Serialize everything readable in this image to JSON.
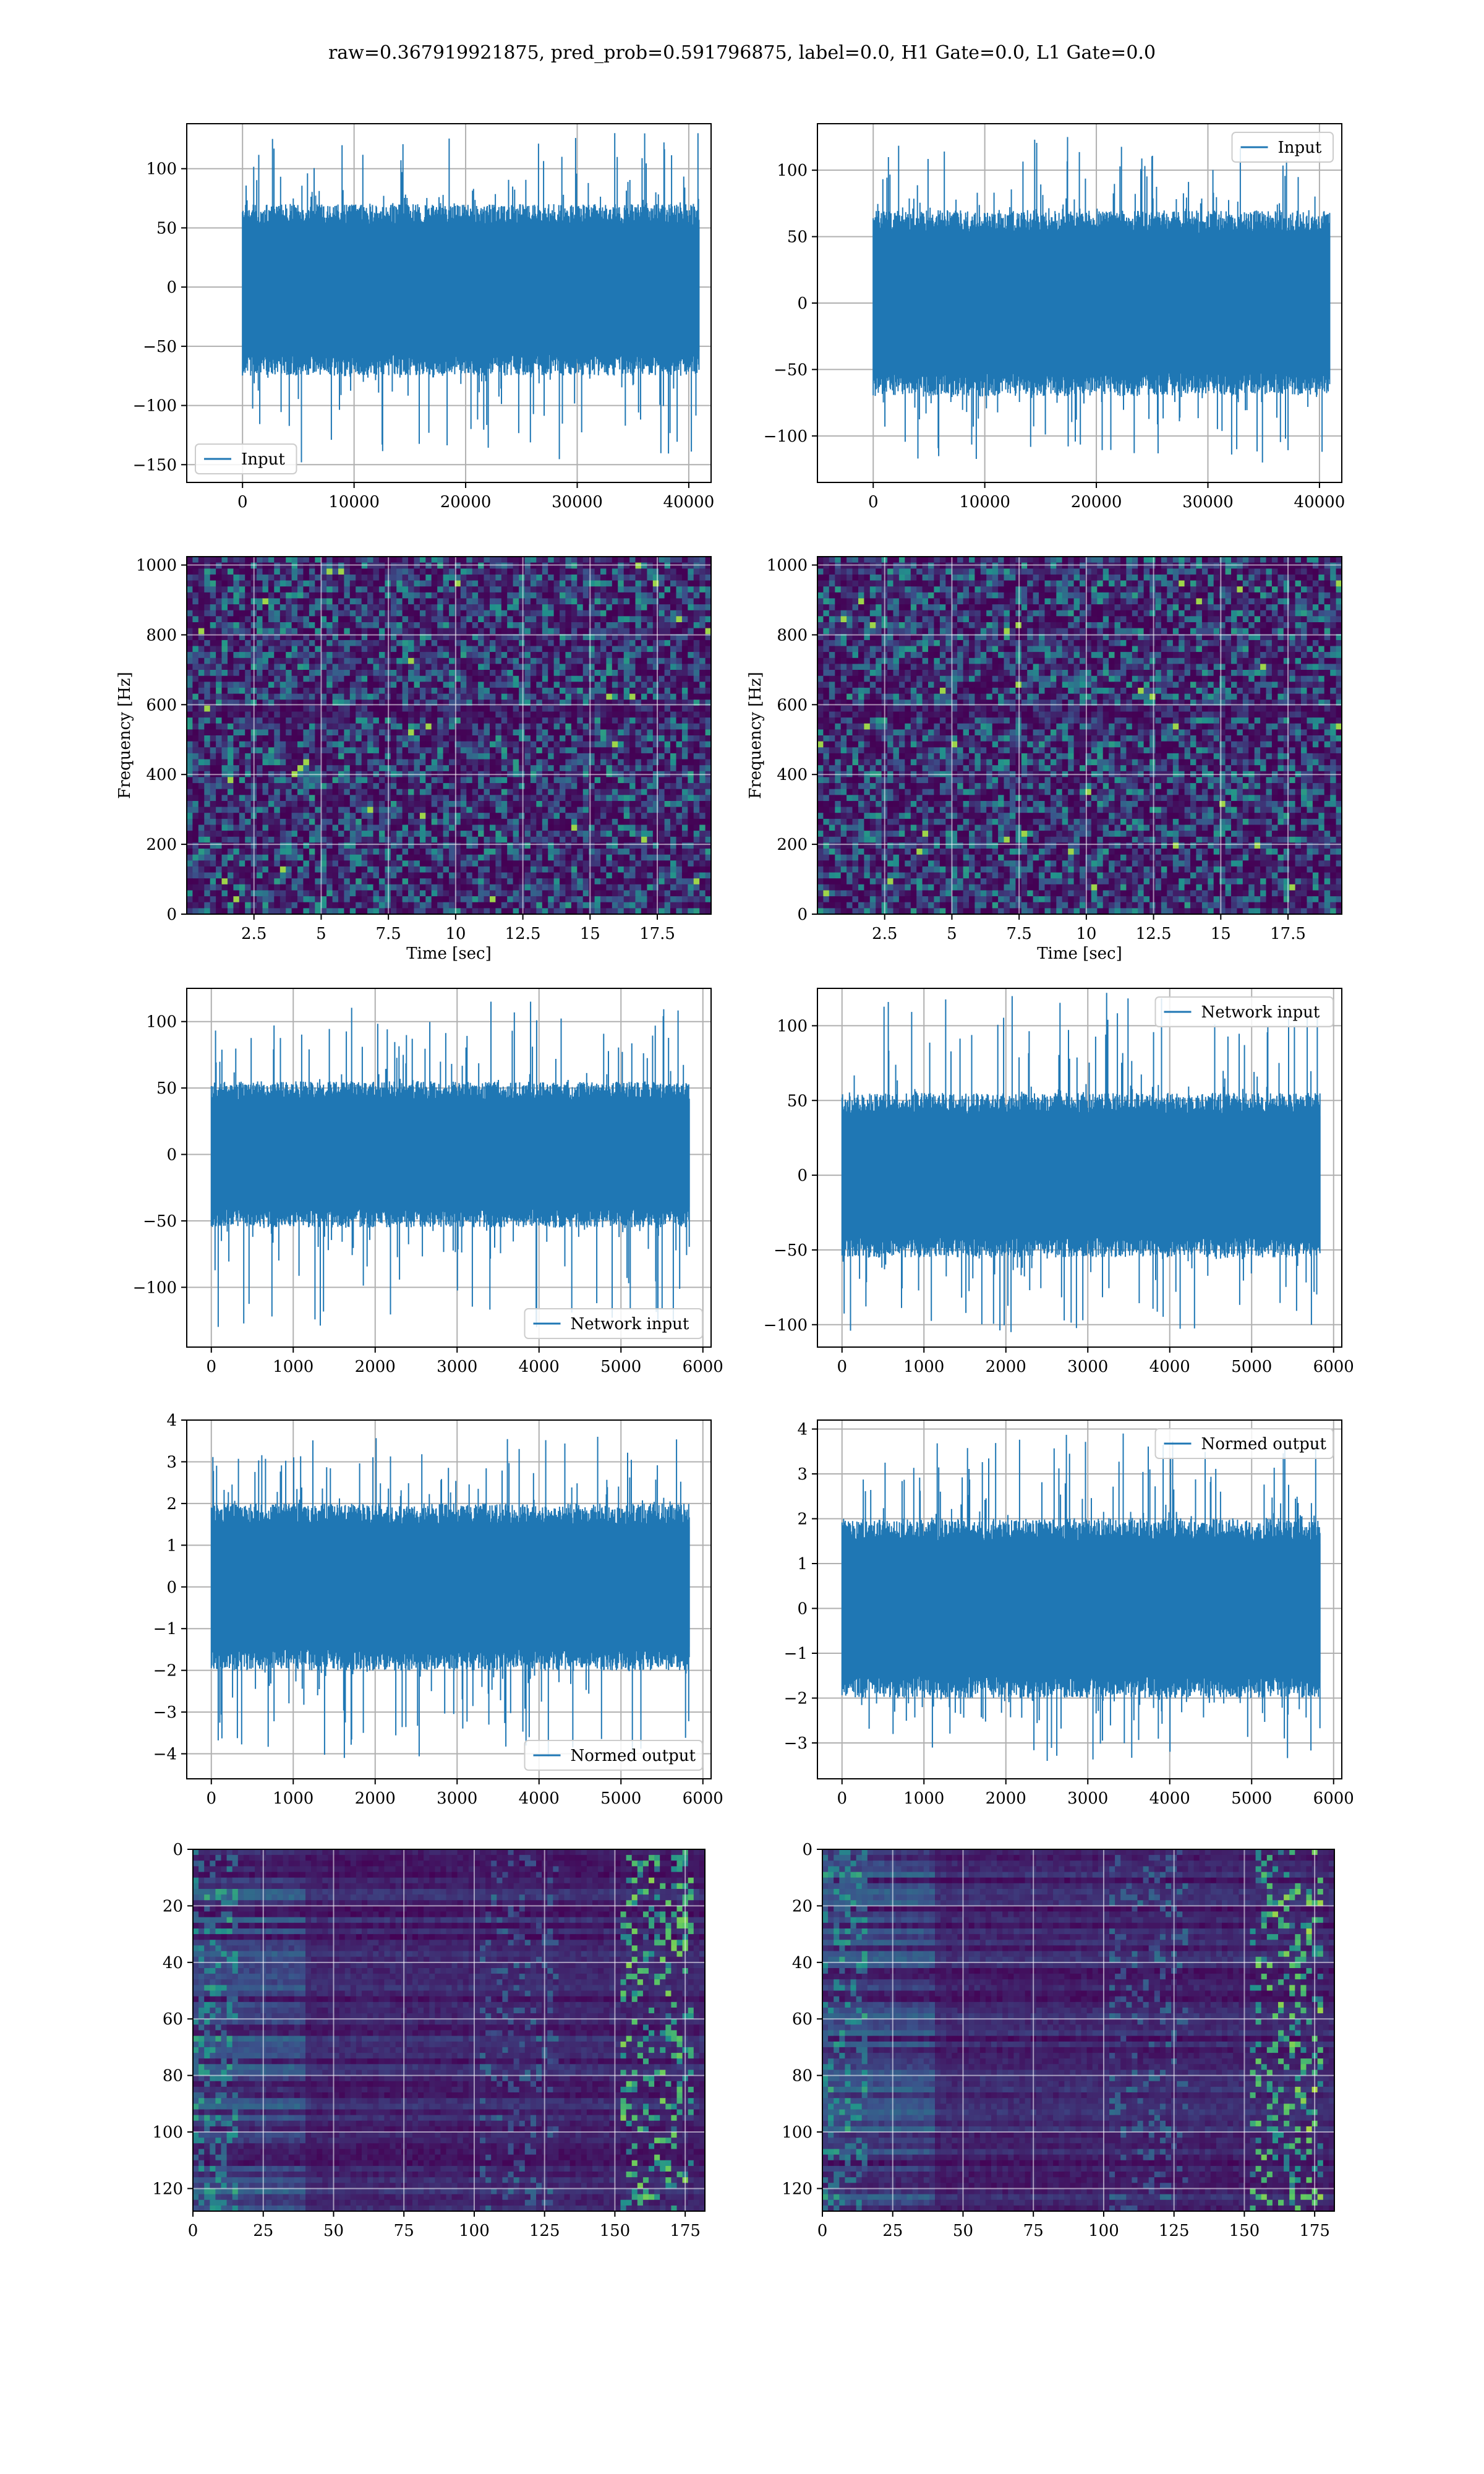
{
  "suptitle": "raw=0.367919921875, pred_prob=0.591796875, label=0.0, H1 Gate=0.0, L1 Gate=0.0",
  "colors": {
    "line": "#1f77b4",
    "grid": "#b0b0b0",
    "viridis_dark": "#440154"
  },
  "chart_data": [
    {
      "id": "h1-input",
      "type": "line",
      "legend": "Input",
      "legend_loc": "lower-left",
      "xlim": [
        -5000,
        42000
      ],
      "ylim": [
        -165,
        138
      ],
      "xticks": [
        0,
        10000,
        20000,
        30000,
        40000
      ],
      "yticks": [
        -150,
        -100,
        -50,
        0,
        50,
        100
      ],
      "n_samples": 40960,
      "noise_amplitude": 130,
      "core_range": [
        -75,
        70
      ],
      "min_spike": -148,
      "max_spike": 130
    },
    {
      "id": "l1-input",
      "type": "line",
      "legend": "Input",
      "legend_loc": "upper-right",
      "xlim": [
        -5000,
        42000
      ],
      "ylim": [
        -135,
        135
      ],
      "xticks": [
        0,
        10000,
        20000,
        30000,
        40000
      ],
      "yticks": [
        -100,
        -50,
        0,
        50,
        100
      ],
      "n_samples": 40960,
      "core_range": [
        -70,
        70
      ],
      "min_spike": -120,
      "max_spike": 125
    },
    {
      "id": "h1-spectrogram",
      "type": "heatmap",
      "colormap": "viridis",
      "xlabel": "Time [sec]",
      "ylabel": "Frequency [Hz]",
      "xlim": [
        0,
        19.5
      ],
      "ylim": [
        0,
        1024
      ],
      "xticks": [
        2.5,
        5.0,
        7.5,
        10.0,
        12.5,
        15.0,
        17.5
      ],
      "yticks": [
        0,
        200,
        400,
        600,
        800,
        1000
      ]
    },
    {
      "id": "l1-spectrogram",
      "type": "heatmap",
      "colormap": "viridis",
      "xlabel": "Time [sec]",
      "ylabel": "Frequency [Hz]",
      "xlim": [
        0,
        19.5
      ],
      "ylim": [
        0,
        1024
      ],
      "xticks": [
        2.5,
        5.0,
        7.5,
        10.0,
        12.5,
        15.0,
        17.5
      ],
      "yticks": [
        0,
        200,
        400,
        600,
        800,
        1000
      ]
    },
    {
      "id": "h1-network-input",
      "type": "line",
      "legend": "Network input",
      "legend_loc": "lower-right",
      "xlim": [
        -300,
        6100
      ],
      "ylim": [
        -145,
        125
      ],
      "xticks": [
        0,
        1000,
        2000,
        3000,
        4000,
        5000,
        6000
      ],
      "yticks": [
        -100,
        -50,
        0,
        50,
        100
      ],
      "n_samples": 5840,
      "core_range": [
        -55,
        55
      ],
      "min_spike": -130,
      "max_spike": 115
    },
    {
      "id": "l1-network-input",
      "type": "line",
      "legend": "Network input",
      "legend_loc": "upper-right",
      "xlim": [
        -300,
        6100
      ],
      "ylim": [
        -115,
        125
      ],
      "xticks": [
        0,
        1000,
        2000,
        3000,
        4000,
        5000,
        6000
      ],
      "yticks": [
        -100,
        -50,
        0,
        50,
        100
      ],
      "n_samples": 5840,
      "core_range": [
        -55,
        55
      ],
      "min_spike": -105,
      "max_spike": 122
    },
    {
      "id": "h1-normed-output",
      "type": "line",
      "legend": "Normed output",
      "legend_loc": "lower-right",
      "xlim": [
        -300,
        6100
      ],
      "ylim": [
        -4.6,
        4.0
      ],
      "xticks": [
        0,
        1000,
        2000,
        3000,
        4000,
        5000,
        6000
      ],
      "yticks": [
        -4,
        -3,
        -2,
        -1,
        0,
        1,
        2,
        3,
        4
      ],
      "n_samples": 5840,
      "core_range": [
        -2,
        2
      ],
      "min_spike": -4.1,
      "max_spike": 3.6
    },
    {
      "id": "l1-normed-output",
      "type": "line",
      "legend": "Normed output",
      "legend_loc": "upper-right",
      "xlim": [
        -300,
        6100
      ],
      "ylim": [
        -3.8,
        4.2
      ],
      "xticks": [
        0,
        1000,
        2000,
        3000,
        4000,
        5000,
        6000
      ],
      "yticks": [
        -3,
        -2,
        -1,
        0,
        1,
        2,
        3,
        4
      ],
      "n_samples": 5840,
      "core_range": [
        -2,
        2
      ],
      "min_spike": -3.4,
      "max_spike": 3.9
    },
    {
      "id": "h1-feature-map",
      "type": "heatmap",
      "colormap": "viridis",
      "xlim": [
        0,
        182
      ],
      "ylim": [
        128,
        0
      ],
      "xticks": [
        0,
        25,
        50,
        75,
        100,
        125,
        150,
        175
      ],
      "yticks": [
        0,
        20,
        40,
        60,
        80,
        100,
        120
      ],
      "rows": 128,
      "cols": 182
    },
    {
      "id": "l1-feature-map",
      "type": "heatmap",
      "colormap": "viridis",
      "xlim": [
        0,
        182
      ],
      "ylim": [
        128,
        0
      ],
      "xticks": [
        0,
        25,
        50,
        75,
        100,
        125,
        150,
        175
      ],
      "yticks": [
        0,
        20,
        40,
        60,
        80,
        100,
        120
      ],
      "rows": 128,
      "cols": 182
    }
  ]
}
